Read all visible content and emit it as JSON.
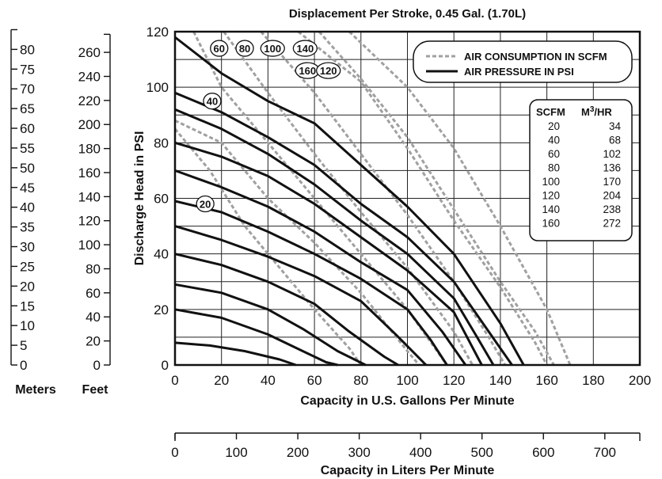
{
  "chart_data": {
    "type": "line",
    "title": "Displacement Per Stroke, 0.45 Gal. (1.70L)",
    "xlabel": "Capacity in U.S. Gallons Per Minute",
    "ylabel": "Discharge Head in PSI",
    "x2label": "Capacity in Liters Per Minute",
    "xlim": [
      0,
      200
    ],
    "ylim": [
      0,
      120
    ],
    "grid": true,
    "x_ticks": [
      "0",
      "20",
      "40",
      "60",
      "80",
      "100",
      "120",
      "140",
      "160",
      "180",
      "200"
    ],
    "y_ticks": [
      "0",
      "20",
      "40",
      "60",
      "80",
      "100",
      "120"
    ],
    "x2_ticks": [
      "0",
      "100",
      "200",
      "300",
      "400",
      "500",
      "600",
      "700"
    ],
    "meters_label": "Meters",
    "meters_ticks": [
      "0",
      "5",
      "10",
      "15",
      "20",
      "25",
      "30",
      "35",
      "40",
      "45",
      "50",
      "55",
      "60",
      "65",
      "70",
      "75",
      "80"
    ],
    "feet_label": "Feet",
    "feet_ticks": [
      "0",
      "20",
      "40",
      "60",
      "80",
      "100",
      "120",
      "140",
      "160",
      "180",
      "200",
      "220",
      "240",
      "260"
    ],
    "legend": {
      "position": "top-right",
      "items": [
        {
          "label": "AIR CONSUMPTION IN SCFM",
          "style": "dashed",
          "color": "#a0a0a0"
        },
        {
          "label": "AIR PRESSURE IN PSI",
          "style": "solid",
          "color": "#111111"
        }
      ]
    },
    "pressure_series": [
      {
        "points": [
          [
            0,
            118
          ],
          [
            20,
            105
          ],
          [
            40,
            95
          ],
          [
            60,
            87
          ],
          [
            80,
            72
          ],
          [
            100,
            57
          ],
          [
            120,
            40
          ],
          [
            140,
            15
          ],
          [
            150,
            0
          ]
        ]
      },
      {
        "points": [
          [
            0,
            98
          ],
          [
            20,
            91
          ],
          [
            40,
            82
          ],
          [
            60,
            72
          ],
          [
            80,
            58
          ],
          [
            100,
            46
          ],
          [
            120,
            30
          ],
          [
            135,
            12
          ],
          [
            145,
            0
          ]
        ]
      },
      {
        "points": [
          [
            0,
            92
          ],
          [
            20,
            85
          ],
          [
            40,
            76
          ],
          [
            60,
            65
          ],
          [
            80,
            52
          ],
          [
            100,
            40
          ],
          [
            120,
            24
          ],
          [
            130,
            10
          ],
          [
            137,
            0
          ]
        ]
      },
      {
        "points": [
          [
            0,
            80
          ],
          [
            20,
            75
          ],
          [
            40,
            68
          ],
          [
            60,
            58
          ],
          [
            80,
            46
          ],
          [
            100,
            34
          ],
          [
            120,
            19
          ],
          [
            132,
            0
          ]
        ]
      },
      {
        "points": [
          [
            0,
            70
          ],
          [
            20,
            64
          ],
          [
            40,
            57
          ],
          [
            60,
            48
          ],
          [
            80,
            37
          ],
          [
            100,
            27
          ],
          [
            115,
            12
          ],
          [
            125,
            0
          ]
        ]
      },
      {
        "points": [
          [
            0,
            59
          ],
          [
            20,
            55
          ],
          [
            40,
            48
          ],
          [
            60,
            40
          ],
          [
            80,
            31
          ],
          [
            100,
            20
          ],
          [
            110,
            9
          ],
          [
            117,
            0
          ]
        ]
      },
      {
        "points": [
          [
            0,
            50
          ],
          [
            20,
            45
          ],
          [
            40,
            39
          ],
          [
            60,
            32
          ],
          [
            80,
            23
          ],
          [
            95,
            11
          ],
          [
            108,
            0
          ]
        ]
      },
      {
        "points": [
          [
            0,
            40
          ],
          [
            20,
            36
          ],
          [
            40,
            30
          ],
          [
            60,
            22
          ],
          [
            75,
            12
          ],
          [
            90,
            3
          ],
          [
            96,
            0
          ]
        ]
      },
      {
        "points": [
          [
            0,
            29
          ],
          [
            20,
            26
          ],
          [
            40,
            20
          ],
          [
            55,
            13
          ],
          [
            70,
            5
          ],
          [
            82,
            0
          ]
        ]
      },
      {
        "points": [
          [
            0,
            20
          ],
          [
            20,
            17
          ],
          [
            40,
            11
          ],
          [
            55,
            5
          ],
          [
            65,
            1
          ],
          [
            70,
            0
          ]
        ]
      },
      {
        "points": [
          [
            0,
            8
          ],
          [
            15,
            7
          ],
          [
            30,
            5
          ],
          [
            45,
            2
          ],
          [
            52,
            0
          ]
        ]
      }
    ],
    "scfm_series": [
      {
        "name": "20",
        "points": [
          [
            0,
            85
          ],
          [
            15,
            70
          ],
          [
            30,
            50
          ],
          [
            45,
            35
          ],
          [
            60,
            20
          ],
          [
            75,
            6
          ],
          [
            80,
            0
          ]
        ]
      },
      {
        "name": "40",
        "points": [
          [
            0,
            88
          ],
          [
            20,
            80
          ],
          [
            40,
            60
          ],
          [
            60,
            44
          ],
          [
            80,
            26
          ],
          [
            100,
            5
          ],
          [
            105,
            0
          ]
        ]
      },
      {
        "name": "60",
        "points": [
          [
            8,
            120
          ],
          [
            20,
            100
          ],
          [
            40,
            80
          ],
          [
            60,
            60
          ],
          [
            80,
            40
          ],
          [
            100,
            20
          ],
          [
            117,
            0
          ]
        ]
      },
      {
        "name": "80",
        "points": [
          [
            21,
            120
          ],
          [
            40,
            98
          ],
          [
            60,
            76
          ],
          [
            80,
            55
          ],
          [
            100,
            35
          ],
          [
            120,
            12
          ],
          [
            128,
            0
          ]
        ]
      },
      {
        "name": "100",
        "points": [
          [
            37,
            120
          ],
          [
            60,
            98
          ],
          [
            80,
            76
          ],
          [
            100,
            54
          ],
          [
            120,
            30
          ],
          [
            135,
            10
          ],
          [
            142,
            0
          ]
        ]
      },
      {
        "name": "120",
        "points": [
          [
            62,
            120
          ],
          [
            80,
            103
          ],
          [
            100,
            82
          ],
          [
            120,
            56
          ],
          [
            140,
            30
          ],
          [
            155,
            12
          ],
          [
            163,
            0
          ]
        ]
      },
      {
        "name": "140",
        "points": [
          [
            53,
            120
          ],
          [
            80,
            102
          ],
          [
            100,
            78
          ],
          [
            120,
            52
          ],
          [
            140,
            28
          ],
          [
            155,
            8
          ],
          [
            160,
            0
          ]
        ]
      },
      {
        "name": "160",
        "points": [
          [
            75,
            120
          ],
          [
            100,
            100
          ],
          [
            120,
            78
          ],
          [
            140,
            50
          ],
          [
            160,
            20
          ],
          [
            170,
            0
          ]
        ]
      }
    ],
    "scfm_labels": [
      {
        "text": "20",
        "x": 13,
        "y": 58
      },
      {
        "text": "40",
        "x": 16,
        "y": 95
      },
      {
        "text": "60",
        "x": 19,
        "y": 114
      },
      {
        "text": "80",
        "x": 30,
        "y": 114
      },
      {
        "text": "100",
        "x": 42,
        "y": 114
      },
      {
        "text": "140",
        "x": 56,
        "y": 114
      },
      {
        "text": "160",
        "x": 57,
        "y": 106
      },
      {
        "text": "120",
        "x": 66,
        "y": 106
      }
    ],
    "table": {
      "headers": [
        "SCFM",
        "M3/HR"
      ],
      "rows": [
        [
          "20",
          "34"
        ],
        [
          "40",
          "68"
        ],
        [
          "60",
          "102"
        ],
        [
          "80",
          "136"
        ],
        [
          "100",
          "170"
        ],
        [
          "120",
          "204"
        ],
        [
          "140",
          "238"
        ],
        [
          "160",
          "272"
        ]
      ]
    }
  }
}
